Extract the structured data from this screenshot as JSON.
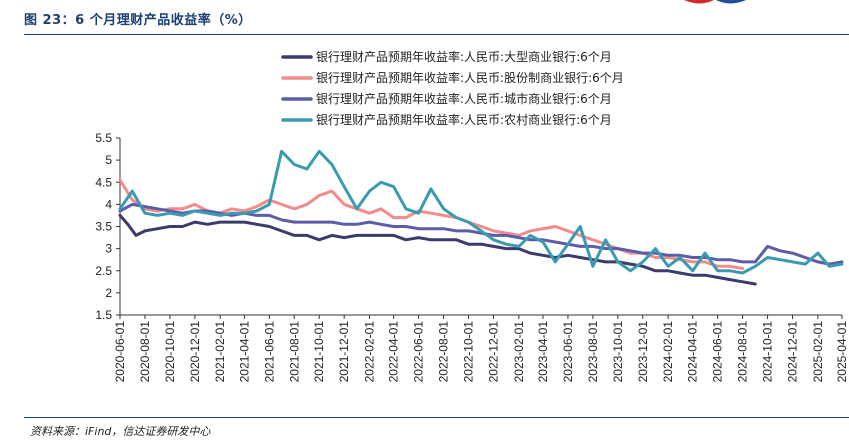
{
  "figure": {
    "title": "图 23：6 个月理财产品收益率（%）",
    "source_note": "资料来源：iFind，信达证券研发中心"
  },
  "colors": {
    "title": "#1c3f73",
    "logo_red": "#d32b2b",
    "logo_blue": "#1f4e9c"
  },
  "chart_data": {
    "type": "line",
    "title": "",
    "xlabel": "",
    "ylabel": "",
    "ylim": [
      1.5,
      5.5
    ],
    "yticks": [
      1.5,
      2,
      2.5,
      3,
      3.5,
      4,
      4.5,
      5,
      5.5
    ],
    "yticks_labels": [
      "1.5",
      "2",
      "2.5",
      "3",
      "3.5",
      "4",
      "4.5",
      "5",
      "5.5"
    ],
    "xlim": [
      "2020-06-01",
      "2025-04-01"
    ],
    "xticks": [
      "2020-06-01",
      "2020-08-01",
      "2020-10-01",
      "2020-12-01",
      "2021-02-01",
      "2021-04-01",
      "2021-06-01",
      "2021-08-01",
      "2021-10-01",
      "2021-12-01",
      "2022-02-01",
      "2022-04-01",
      "2022-06-01",
      "2022-08-01",
      "2022-10-01",
      "2022-12-01",
      "2023-02-01",
      "2023-04-01",
      "2023-06-01",
      "2023-08-01",
      "2023-10-01",
      "2023-12-01",
      "2024-02-01",
      "2024-04-01",
      "2024-06-01",
      "2024-08-01",
      "2024-10-01",
      "2024-12-01",
      "2025-02-01",
      "2025-04-01"
    ],
    "legend_position": "top",
    "grid": false,
    "series": [
      {
        "name": "银行理财产品预期年收益率:人民币:大型商业银行:6个月",
        "color": "#3b3b6d",
        "x": [
          "2020-06-01",
          "2020-06-20",
          "2020-07-10",
          "2020-08-01",
          "2020-09-01",
          "2020-10-01",
          "2020-11-01",
          "2020-12-01",
          "2021-01-01",
          "2021-02-01",
          "2021-03-01",
          "2021-04-01",
          "2021-05-01",
          "2021-06-01",
          "2021-07-01",
          "2021-08-01",
          "2021-09-01",
          "2021-10-01",
          "2021-11-01",
          "2021-12-01",
          "2022-01-01",
          "2022-02-01",
          "2022-03-01",
          "2022-04-01",
          "2022-05-01",
          "2022-06-01",
          "2022-07-01",
          "2022-08-01",
          "2022-09-01",
          "2022-10-01",
          "2022-11-01",
          "2022-12-01",
          "2023-01-01",
          "2023-02-01",
          "2023-03-01",
          "2023-04-01",
          "2023-05-01",
          "2023-06-01",
          "2023-07-01",
          "2023-08-01",
          "2023-09-01",
          "2023-10-01",
          "2023-11-01",
          "2023-12-01",
          "2024-01-01",
          "2024-02-01",
          "2024-03-01",
          "2024-04-01",
          "2024-05-01",
          "2024-06-01",
          "2024-07-01",
          "2024-08-01",
          "2024-09-01"
        ],
        "values": [
          3.75,
          3.55,
          3.3,
          3.4,
          3.45,
          3.5,
          3.5,
          3.6,
          3.55,
          3.6,
          3.6,
          3.6,
          3.55,
          3.5,
          3.4,
          3.3,
          3.3,
          3.2,
          3.3,
          3.25,
          3.3,
          3.3,
          3.3,
          3.3,
          3.2,
          3.25,
          3.2,
          3.2,
          3.2,
          3.1,
          3.1,
          3.05,
          3.0,
          3.0,
          2.9,
          2.85,
          2.8,
          2.85,
          2.8,
          2.75,
          2.7,
          2.7,
          2.65,
          2.6,
          2.5,
          2.5,
          2.45,
          2.4,
          2.4,
          2.35,
          2.3,
          2.25,
          2.2
        ]
      },
      {
        "name": "银行理财产品预期年收益率:人民币:股份制商业银行:6个月",
        "color": "#f48a8a",
        "x": [
          "2020-06-01",
          "2020-07-01",
          "2020-08-01",
          "2020-09-01",
          "2020-10-01",
          "2020-11-01",
          "2020-12-01",
          "2021-01-01",
          "2021-02-01",
          "2021-03-01",
          "2021-04-01",
          "2021-05-01",
          "2021-06-01",
          "2021-07-01",
          "2021-08-01",
          "2021-09-01",
          "2021-10-01",
          "2021-11-01",
          "2021-12-01",
          "2022-01-01",
          "2022-02-01",
          "2022-03-01",
          "2022-04-01",
          "2022-05-01",
          "2022-06-01",
          "2022-07-01",
          "2022-08-01",
          "2022-09-01",
          "2022-10-01",
          "2022-11-01",
          "2022-12-01",
          "2023-01-01",
          "2023-02-01",
          "2023-03-01",
          "2023-04-01",
          "2023-05-01",
          "2023-06-01",
          "2023-07-01",
          "2023-08-01",
          "2023-09-01",
          "2023-10-01",
          "2023-11-01",
          "2023-12-01",
          "2024-01-01",
          "2024-02-01",
          "2024-03-01",
          "2024-04-01",
          "2024-05-01",
          "2024-06-01",
          "2024-07-01",
          "2024-08-01"
        ],
        "values": [
          4.55,
          4.1,
          3.9,
          3.85,
          3.9,
          3.9,
          4.0,
          3.85,
          3.8,
          3.9,
          3.85,
          3.95,
          4.1,
          4.0,
          3.9,
          4.0,
          4.2,
          4.3,
          4.0,
          3.9,
          3.8,
          3.9,
          3.7,
          3.7,
          3.85,
          3.8,
          3.75,
          3.7,
          3.6,
          3.5,
          3.4,
          3.35,
          3.3,
          3.4,
          3.45,
          3.5,
          3.4,
          3.3,
          3.2,
          3.1,
          3.0,
          2.9,
          2.9,
          2.8,
          2.8,
          2.75,
          2.7,
          2.7,
          2.6,
          2.6,
          2.55
        ]
      },
      {
        "name": "银行理财产品预期年收益率:人民币:城市商业银行:6个月",
        "color": "#5b5ea6",
        "x": [
          "2020-06-01",
          "2020-07-01",
          "2020-08-01",
          "2020-09-01",
          "2020-10-01",
          "2020-11-01",
          "2020-12-01",
          "2021-01-01",
          "2021-02-01",
          "2021-03-01",
          "2021-04-01",
          "2021-05-01",
          "2021-06-01",
          "2021-07-01",
          "2021-08-01",
          "2021-09-01",
          "2021-10-01",
          "2021-11-01",
          "2021-12-01",
          "2022-01-01",
          "2022-02-01",
          "2022-03-01",
          "2022-04-01",
          "2022-05-01",
          "2022-06-01",
          "2022-07-01",
          "2022-08-01",
          "2022-09-01",
          "2022-10-01",
          "2022-11-01",
          "2022-12-01",
          "2023-01-01",
          "2023-02-01",
          "2023-03-01",
          "2023-04-01",
          "2023-05-01",
          "2023-06-01",
          "2023-07-01",
          "2023-08-01",
          "2023-09-01",
          "2023-10-01",
          "2023-11-01",
          "2023-12-01",
          "2024-01-01",
          "2024-02-01",
          "2024-03-01",
          "2024-04-01",
          "2024-05-01",
          "2024-06-01",
          "2024-07-01",
          "2024-08-01",
          "2024-09-01",
          "2024-10-01",
          "2024-11-01",
          "2024-12-01",
          "2025-01-01",
          "2025-02-01",
          "2025-03-01",
          "2025-04-01"
        ],
        "values": [
          3.85,
          4.0,
          3.95,
          3.9,
          3.85,
          3.8,
          3.85,
          3.85,
          3.8,
          3.75,
          3.8,
          3.75,
          3.75,
          3.65,
          3.6,
          3.6,
          3.6,
          3.6,
          3.55,
          3.55,
          3.6,
          3.55,
          3.5,
          3.5,
          3.45,
          3.45,
          3.45,
          3.4,
          3.4,
          3.35,
          3.3,
          3.3,
          3.25,
          3.2,
          3.2,
          3.15,
          3.1,
          3.05,
          3.05,
          3.0,
          3.0,
          2.95,
          2.9,
          2.9,
          2.85,
          2.85,
          2.8,
          2.8,
          2.75,
          2.75,
          2.7,
          2.7,
          3.05,
          2.95,
          2.9,
          2.8,
          2.7,
          2.65,
          2.7
        ]
      },
      {
        "name": "银行理财产品预期年收益率:人民币:农村商业银行:6个月",
        "color": "#3a9bb0",
        "x": [
          "2020-06-01",
          "2020-07-01",
          "2020-08-01",
          "2020-09-01",
          "2020-10-01",
          "2020-11-01",
          "2020-12-01",
          "2021-01-01",
          "2021-02-01",
          "2021-03-01",
          "2021-04-01",
          "2021-05-01",
          "2021-06-01",
          "2021-07-01",
          "2021-08-01",
          "2021-09-01",
          "2021-10-01",
          "2021-11-01",
          "2021-12-01",
          "2022-01-01",
          "2022-02-01",
          "2022-03-01",
          "2022-04-01",
          "2022-05-01",
          "2022-06-01",
          "2022-07-01",
          "2022-08-01",
          "2022-09-01",
          "2022-10-01",
          "2022-11-01",
          "2022-12-01",
          "2023-01-01",
          "2023-02-01",
          "2023-03-01",
          "2023-04-01",
          "2023-05-01",
          "2023-06-01",
          "2023-07-01",
          "2023-08-01",
          "2023-09-01",
          "2023-10-01",
          "2023-11-01",
          "2023-12-01",
          "2024-01-01",
          "2024-02-01",
          "2024-03-01",
          "2024-04-01",
          "2024-05-01",
          "2024-06-01",
          "2024-07-01",
          "2024-08-01",
          "2024-09-01",
          "2024-10-01",
          "2024-11-01",
          "2024-12-01",
          "2025-01-01",
          "2025-02-01",
          "2025-03-01",
          "2025-04-01"
        ],
        "values": [
          3.9,
          4.3,
          3.8,
          3.75,
          3.8,
          3.75,
          3.85,
          3.8,
          3.75,
          3.8,
          3.8,
          3.85,
          4.0,
          5.2,
          4.9,
          4.8,
          5.2,
          4.9,
          4.4,
          3.9,
          4.3,
          4.5,
          4.4,
          3.9,
          3.8,
          4.35,
          3.9,
          3.7,
          3.6,
          3.4,
          3.2,
          3.1,
          3.05,
          3.3,
          3.15,
          2.7,
          3.1,
          3.5,
          2.6,
          3.2,
          2.7,
          2.5,
          2.7,
          3.0,
          2.6,
          2.8,
          2.5,
          2.9,
          2.5,
          2.5,
          2.45,
          2.6,
          2.8,
          2.75,
          2.7,
          2.65,
          2.9,
          2.6,
          2.65
        ]
      }
    ]
  }
}
